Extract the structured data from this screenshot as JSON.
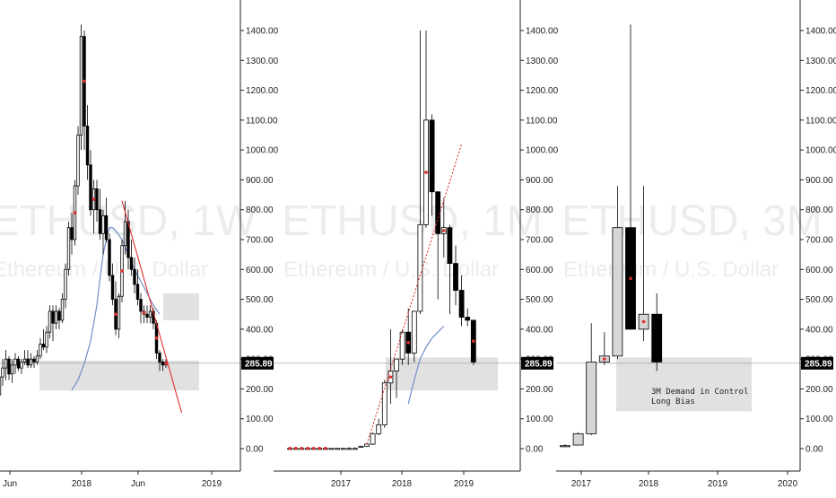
{
  "colors": {
    "up": "#ffffff",
    "up_3m": "#d6d6d6",
    "down": "#000000",
    "zone": "#dcdcdc",
    "trend": "#e03030",
    "ma": "#6f8fc8",
    "marker": "#e03030",
    "axis": "#222222"
  },
  "chart_data": [
    {
      "type": "candlestick",
      "watermark": {
        "symbol": "ETHUSD, 1W",
        "name": "Ethereum / U.S. Dollar"
      },
      "y_ticks": [
        "1400.00",
        "1300.00",
        "1200.00",
        "1100.00",
        "1000.00",
        "900.00",
        "800.00",
        "700.00",
        "600.00",
        "500.00",
        "400.00",
        "300.00",
        "200.00",
        "100.00",
        "0.00"
      ],
      "ylim": [
        -60,
        1440
      ],
      "x_ticks": [
        "Jun",
        "2018",
        "Jun",
        "2019"
      ],
      "last_price": "285.89",
      "zones": [
        {
          "from": 430,
          "to": 520
        },
        {
          "from": 195,
          "to": 295
        }
      ],
      "trend_lines": [
        {
          "points": [
            [
              0,
              830
            ],
            [
              19,
              120
            ]
          ]
        }
      ],
      "ma_line": [
        [
          -16,
          195
        ],
        [
          -14,
          230
        ],
        [
          -12,
          285
        ],
        [
          -10,
          360
        ],
        [
          -8,
          480
        ],
        [
          -7,
          570
        ],
        [
          -6,
          650
        ],
        [
          -5,
          700
        ],
        [
          -4,
          740
        ],
        [
          -3,
          740
        ],
        [
          -2,
          730
        ],
        [
          -1,
          715
        ],
        [
          0,
          700
        ],
        [
          2,
          650
        ],
        [
          4,
          600
        ],
        [
          6,
          560
        ],
        [
          8,
          520
        ],
        [
          10,
          480
        ],
        [
          12,
          450
        ]
      ],
      "candles": [
        [
          -44,
          200,
          280,
          150,
          240
        ],
        [
          -43,
          240,
          300,
          180,
          220
        ],
        [
          -42,
          220,
          340,
          210,
          310
        ],
        [
          -41,
          310,
          400,
          250,
          270
        ],
        [
          -40,
          270,
          320,
          150,
          180
        ],
        [
          -39,
          180,
          260,
          160,
          240
        ],
        [
          -38,
          240,
          300,
          210,
          270
        ],
        [
          -37,
          270,
          330,
          230,
          300
        ],
        [
          -36,
          300,
          310,
          230,
          250
        ],
        [
          -35,
          250,
          300,
          220,
          280
        ],
        [
          -34,
          280,
          320,
          250,
          300
        ],
        [
          -33,
          300,
          310,
          260,
          270
        ],
        [
          -32,
          270,
          300,
          250,
          290
        ],
        [
          -31,
          290,
          330,
          280,
          300
        ],
        [
          -30,
          300,
          330,
          270,
          280
        ],
        [
          -29,
          280,
          320,
          270,
          300
        ],
        [
          -28,
          300,
          310,
          270,
          290
        ],
        [
          -27,
          290,
          330,
          280,
          310
        ],
        [
          -26,
          310,
          370,
          300,
          350
        ],
        [
          -25,
          350,
          400,
          330,
          340
        ],
        [
          -24,
          340,
          410,
          320,
          390
        ],
        [
          -23,
          390,
          480,
          370,
          460
        ],
        [
          -22,
          460,
          480,
          360,
          420
        ],
        [
          -21,
          420,
          480,
          400,
          460
        ],
        [
          -20,
          460,
          470,
          400,
          430
        ],
        [
          -19,
          430,
          520,
          420,
          500
        ],
        [
          -18,
          500,
          620,
          470,
          600
        ],
        [
          -17,
          600,
          760,
          580,
          740
        ],
        [
          -16,
          740,
          790,
          650,
          700
        ],
        [
          -15,
          700,
          900,
          680,
          880
        ],
        [
          -14,
          880,
          1080,
          850,
          1050
        ],
        [
          -13,
          1050,
          1420,
          1000,
          1380
        ],
        [
          -12,
          1380,
          1400,
          1000,
          1080
        ],
        [
          -11,
          1080,
          1150,
          900,
          950
        ],
        [
          -10,
          950,
          1000,
          780,
          800
        ],
        [
          -9,
          800,
          900,
          720,
          870
        ],
        [
          -8,
          870,
          900,
          760,
          800
        ],
        [
          -7,
          800,
          870,
          700,
          720
        ],
        [
          -6,
          720,
          800,
          650,
          780
        ],
        [
          -5,
          780,
          840,
          690,
          700
        ],
        [
          -4,
          700,
          720,
          560,
          580
        ],
        [
          -3,
          580,
          620,
          480,
          500
        ],
        [
          -2,
          500,
          560,
          380,
          400
        ],
        [
          -1,
          400,
          520,
          370,
          510
        ],
        [
          0,
          510,
          700,
          490,
          680
        ],
        [
          1,
          680,
          830,
          650,
          760
        ],
        [
          2,
          760,
          800,
          600,
          640
        ],
        [
          3,
          640,
          700,
          580,
          600
        ],
        [
          4,
          600,
          640,
          520,
          550
        ],
        [
          5,
          550,
          600,
          480,
          500
        ],
        [
          6,
          500,
          520,
          420,
          460
        ],
        [
          7,
          460,
          480,
          420,
          450
        ],
        [
          8,
          450,
          480,
          420,
          440
        ],
        [
          9,
          440,
          480,
          420,
          460
        ],
        [
          10,
          460,
          470,
          400,
          420
        ],
        [
          11,
          420,
          430,
          300,
          320
        ],
        [
          12,
          320,
          330,
          260,
          290
        ],
        [
          13,
          290,
          300,
          260,
          280
        ],
        [
          14,
          280,
          300,
          270,
          290
        ]
      ]
    },
    {
      "type": "candlestick",
      "watermark": {
        "symbol": "ETHUSD, 1M",
        "name": "Ethereum / U.S. Dollar"
      },
      "y_ticks": [
        "1400.00",
        "1300.00",
        "1200.00",
        "1100.00",
        "1000.00",
        "900.00",
        "800.00",
        "700.00",
        "600.00",
        "500.00",
        "400.00",
        "300.00",
        "200.00",
        "100.00",
        "0.00"
      ],
      "ylim": [
        -60,
        1440
      ],
      "x_ticks": [
        "2017",
        "2018",
        "2019"
      ],
      "last_price": "285.89",
      "zones": [
        {
          "from": 195,
          "to": 305
        }
      ],
      "trend_lines": [
        {
          "points": [
            [
              0,
              15
            ],
            [
              16,
              1020
            ]
          ],
          "dashed": true
        }
      ],
      "ma_line": [
        [
          7,
          150
        ],
        [
          8,
          230
        ],
        [
          9,
          300
        ],
        [
          10,
          340
        ],
        [
          11,
          370
        ],
        [
          12,
          390
        ],
        [
          13,
          410
        ]
      ],
      "candles": [
        [
          -13,
          1,
          1,
          1,
          1
        ],
        [
          -12,
          1,
          1,
          1,
          1
        ],
        [
          -11,
          1,
          1,
          1,
          1
        ],
        [
          -10,
          1,
          1,
          1,
          1
        ],
        [
          -9,
          1,
          1,
          1,
          1
        ],
        [
          -8,
          1,
          1,
          1,
          1
        ],
        [
          -7,
          1,
          2,
          1,
          1
        ],
        [
          -6,
          1,
          2,
          1,
          1
        ],
        [
          -5,
          1,
          2,
          1,
          1
        ],
        [
          -4,
          1,
          3,
          1,
          1
        ],
        [
          -3,
          1,
          5,
          1,
          1
        ],
        [
          -2,
          1,
          5,
          1,
          1
        ],
        [
          -1,
          5,
          10,
          5,
          8
        ],
        [
          0,
          8,
          15,
          7,
          15
        ],
        [
          1,
          15,
          55,
          12,
          50
        ],
        [
          2,
          50,
          100,
          45,
          80
        ],
        [
          3,
          80,
          230,
          70,
          220
        ],
        [
          4,
          220,
          400,
          150,
          260
        ],
        [
          5,
          260,
          300,
          170,
          300
        ],
        [
          6,
          300,
          400,
          280,
          390
        ],
        [
          7,
          390,
          470,
          280,
          320
        ],
        [
          8,
          320,
          460,
          290,
          460
        ],
        [
          9,
          460,
          1400,
          450,
          750
        ],
        [
          10,
          750,
          1400,
          740,
          1100
        ],
        [
          11,
          1100,
          1120,
          780,
          860
        ],
        [
          12,
          860,
          860,
          500,
          720
        ],
        [
          13,
          720,
          840,
          640,
          740
        ],
        [
          14,
          740,
          750,
          450,
          620
        ],
        [
          15,
          620,
          680,
          480,
          530
        ],
        [
          16,
          530,
          580,
          410,
          440
        ],
        [
          17,
          440,
          470,
          410,
          430
        ],
        [
          18,
          430,
          430,
          280,
          290
        ]
      ]
    },
    {
      "type": "candlestick",
      "watermark": {
        "symbol": "ETHUSD, 3M",
        "name": "Ethereum / U.S. Dollar"
      },
      "y_ticks": [
        "1400.00",
        "1300.00",
        "1200.00",
        "1100.00",
        "1000.00",
        "900.00",
        "800.00",
        "700.00",
        "600.00",
        "500.00",
        "400.00",
        "300.00",
        "200.00",
        "100.00",
        "0.00"
      ],
      "ylim": [
        -60,
        1440
      ],
      "x_ticks": [
        "2017",
        "2018",
        "2019",
        "2020"
      ],
      "last_price": "285.89",
      "zones": [
        {
          "from": 125,
          "to": 305
        }
      ],
      "annotations": [
        "3M Demand in Control",
        "Long Bias"
      ],
      "candles": [
        [
          0,
          10,
          15,
          5,
          10
        ],
        [
          1,
          12,
          55,
          10,
          50
        ],
        [
          2,
          50,
          420,
          45,
          290
        ],
        [
          3,
          290,
          390,
          280,
          310
        ],
        [
          4,
          310,
          880,
          300,
          740
        ],
        [
          5,
          740,
          1420,
          400,
          400
        ],
        [
          6,
          400,
          880,
          360,
          450
        ],
        [
          7,
          450,
          520,
          260,
          290
        ]
      ]
    }
  ]
}
